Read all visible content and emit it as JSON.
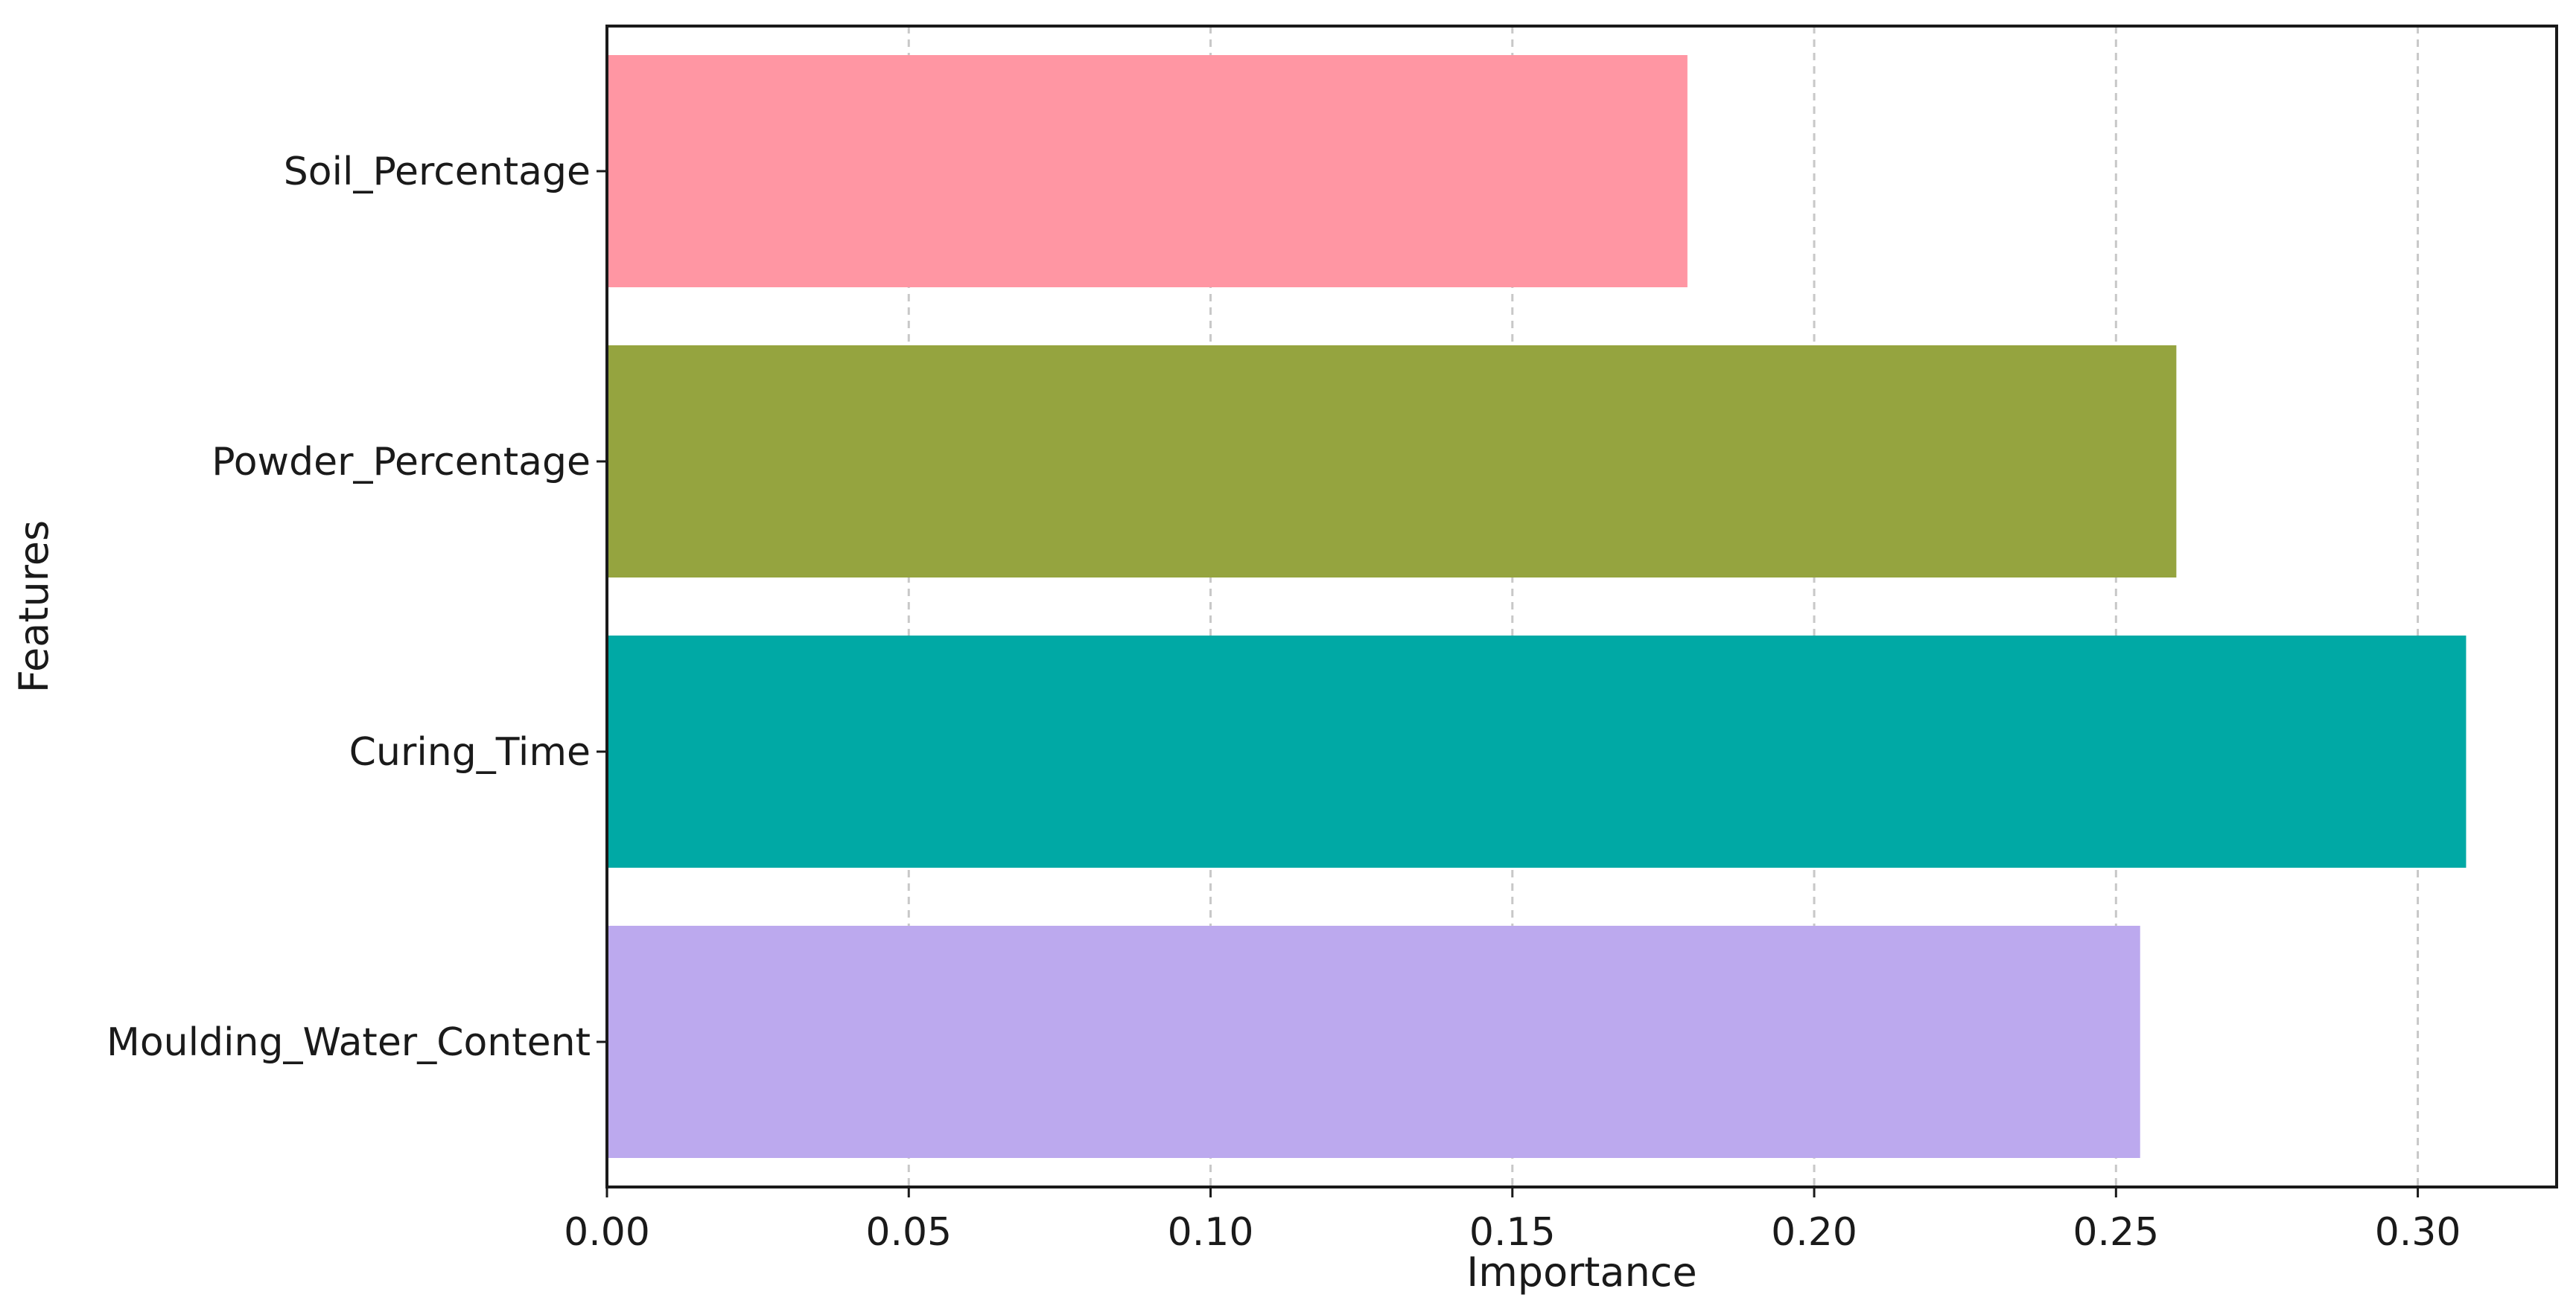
{
  "chart_data": {
    "type": "bar",
    "orientation": "horizontal",
    "categories": [
      "Soil_Percentage",
      "Powder_Percentage",
      "Curing_Time",
      "Moulding_Water_Content"
    ],
    "values": [
      0.179,
      0.26,
      0.308,
      0.254
    ],
    "colors": [
      "#ff96a3",
      "#95a43f",
      "#00a9a5",
      "#bca9ee"
    ],
    "xlabel": "Importance",
    "ylabel": "Features",
    "xlim": [
      0,
      0.323
    ],
    "xticks": [
      0.0,
      0.05,
      0.1,
      0.15,
      0.2,
      0.25,
      0.3
    ],
    "xtick_labels": [
      "0.00",
      "0.05",
      "0.10",
      "0.15",
      "0.20",
      "0.25",
      "0.30"
    ],
    "grid": "x-dashed",
    "legend": "none"
  }
}
